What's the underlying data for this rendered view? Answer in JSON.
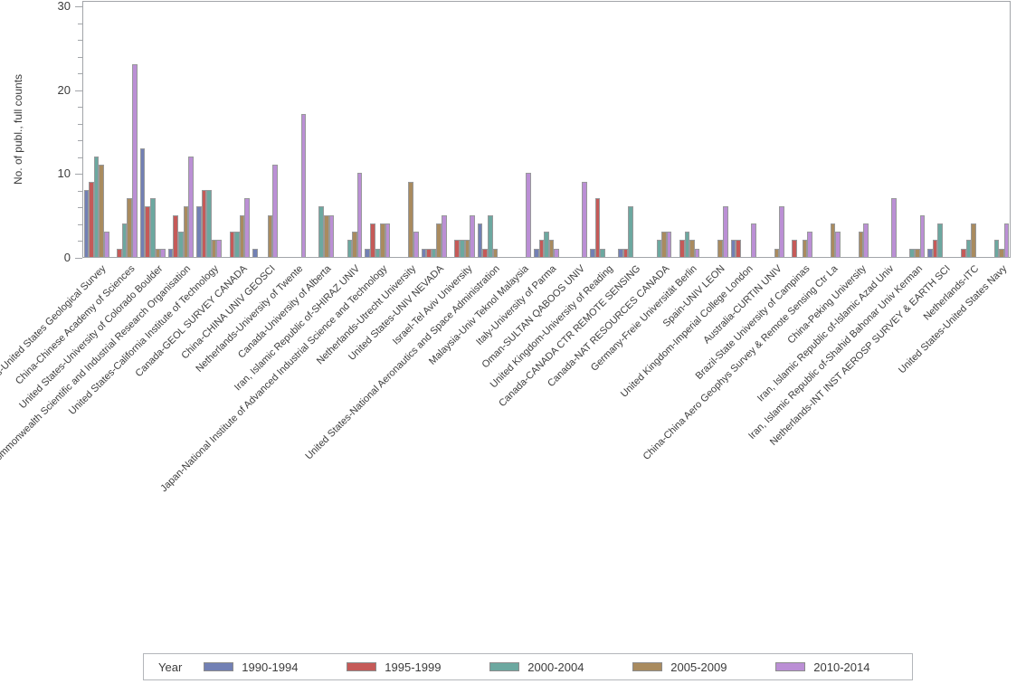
{
  "chart_data": {
    "type": "bar",
    "title": "",
    "xlabel": "",
    "ylabel": "No. of publ., full counts",
    "ylim": [
      0,
      30
    ],
    "yticks": [
      0,
      10,
      20,
      30
    ],
    "minor_tick_step": 2,
    "grid": false,
    "legend_position": "bottom",
    "legend_title": "Year",
    "frame_color": "#a2a5a9",
    "categories": [
      "United States-United States Geological Survey",
      "China-Chinese Academy of Sciences",
      "United States-University of Colorado Boulder",
      "Australia-Commonwealth Scientific and Industrial Research Organisation",
      "United States-California Institute of Technology",
      "Canada-GEOL SURVEY CANADA",
      "China-CHINA UNIV GEOSCI",
      "Netherlands-University of Twente",
      "Canada-University of Alberta",
      "Iran, Islamic Republic of-SHIRAZ UNIV",
      "Japan-National Institute of Advanced Industrial Science and Technology",
      "Netherlands-Utrecht University",
      "United States-UNIV NEVADA",
      "Israel-Tel Aviv University",
      "United States-National Aeronautics and Space Administration",
      "Malaysia-Univ Teknol Malaysia",
      "Italy-University of Parma",
      "Oman-SULTAN QABOOS UNIV",
      "United Kingdom-University of Reading",
      "Canada-CANADA CTR REMOTE SENSING",
      "Canada-NAT RESOURCES CANADA",
      "Germany-Freie Universität Berlin",
      "Spain-UNIV LEON",
      "United Kingdom-Imperial College London",
      "Australia-CURTIN UNIV",
      "Brazil-State University of Campinas",
      "China-China Aero Geophys Survey & Remote Sensing Ctr La",
      "China-Peking University",
      "Iran, Islamic Republic of-Islamic Azad Univ",
      "Iran, Islamic Republic of-Shahid Bahonar Univ Kerman",
      "Netherlands-INT INST AEROSP SURVEY & EARTH SCI",
      "Netherlands-ITC",
      "United States-United States Navy"
    ],
    "series": [
      {
        "name": "1990-1994",
        "color": "#7280b4",
        "values": [
          8,
          0,
          13,
          1,
          6,
          0,
          1,
          0,
          0,
          0,
          1,
          0,
          1,
          0,
          4,
          0,
          1,
          0,
          1,
          1,
          0,
          0,
          0,
          2,
          0,
          0,
          0,
          0,
          0,
          0,
          1,
          0,
          0
        ]
      },
      {
        "name": "1995-1999",
        "color": "#c55a58",
        "values": [
          9,
          1,
          6,
          5,
          8,
          3,
          0,
          0,
          0,
          0,
          4,
          0,
          1,
          2,
          1,
          0,
          2,
          0,
          7,
          1,
          0,
          2,
          0,
          2,
          0,
          2,
          0,
          0,
          0,
          0,
          2,
          1,
          0
        ]
      },
      {
        "name": "2000-2004",
        "color": "#6ca8a0",
        "values": [
          12,
          4,
          7,
          3,
          8,
          3,
          0,
          0,
          6,
          2,
          1,
          0,
          1,
          2,
          5,
          0,
          3,
          0,
          1,
          6,
          2,
          3,
          0,
          0,
          0,
          0,
          0,
          0,
          0,
          1,
          4,
          2,
          2
        ]
      },
      {
        "name": "2005-2009",
        "color": "#a98b5f",
        "values": [
          11,
          7,
          1,
          6,
          2,
          5,
          5,
          0,
          5,
          3,
          4,
          9,
          4,
          2,
          1,
          0,
          2,
          0,
          0,
          0,
          3,
          2,
          2,
          0,
          1,
          2,
          4,
          3,
          0,
          1,
          0,
          4,
          1
        ]
      },
      {
        "name": "2010-2014",
        "color": "#bb8fd5",
        "values": [
          3,
          23,
          1,
          12,
          2,
          7,
          11,
          17,
          5,
          10,
          4,
          3,
          5,
          5,
          0,
          10,
          1,
          9,
          0,
          0,
          3,
          1,
          6,
          4,
          6,
          3,
          3,
          4,
          7,
          5,
          0,
          0,
          4
        ]
      }
    ]
  }
}
